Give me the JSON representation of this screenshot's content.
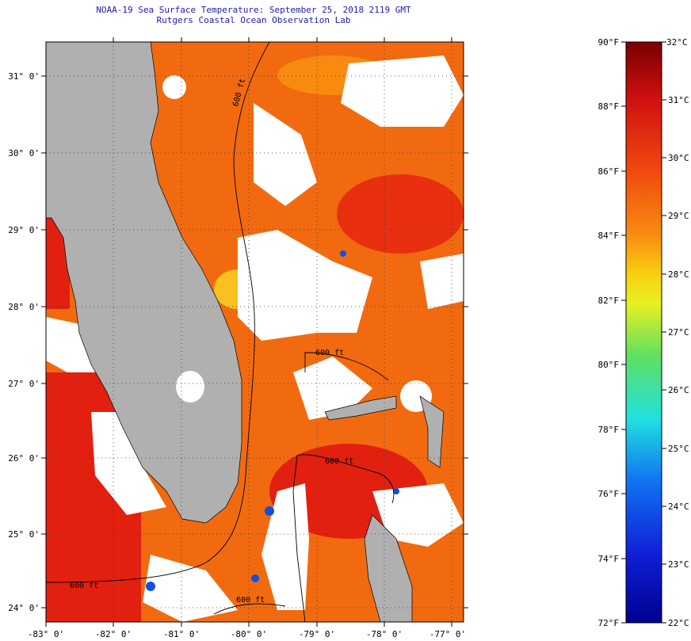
{
  "header": {
    "title": "NOAA-19 Sea Surface Temperature:  September 25, 2018 2119 GMT",
    "subtitle": "Rutgers Coastal Ocean Observation Lab"
  },
  "map": {
    "lat_labels": [
      "31° 0'",
      "30° 0'",
      "29° 0'",
      "28° 0'",
      "27° 0'",
      "26° 0'",
      "25° 0'",
      "24° 0'"
    ],
    "lon_labels": [
      "-83° 0'",
      "-82° 0'",
      "-81° 0'",
      "-80° 0'",
      "-79° 0'",
      "-78° 0'",
      "-77° 0'"
    ],
    "contour_labels": [
      "600 ft",
      "600 ft",
      "600 ft",
      "600 ft",
      "600 ft"
    ],
    "colors": {
      "land": "#b0b0b0",
      "cloud": "#ffffff",
      "warm_water": "#f26a10",
      "hot_water": "#e22010"
    }
  },
  "colorbar": {
    "f_labels": [
      "90°F",
      "88°F",
      "86°F",
      "84°F",
      "82°F",
      "80°F",
      "78°F",
      "76°F",
      "74°F",
      "72°F"
    ],
    "c_labels": [
      "32°C",
      "31°C",
      "30°C",
      "29°C",
      "28°C",
      "27°C",
      "26°C",
      "25°C",
      "24°C",
      "23°C",
      "22°C"
    ],
    "stops": [
      "#7a0000",
      "#d01010",
      "#f04810",
      "#f88a10",
      "#f8d010",
      "#e8f020",
      "#60e060",
      "#20e0e0",
      "#1070f0",
      "#1020d8",
      "#000090"
    ]
  }
}
